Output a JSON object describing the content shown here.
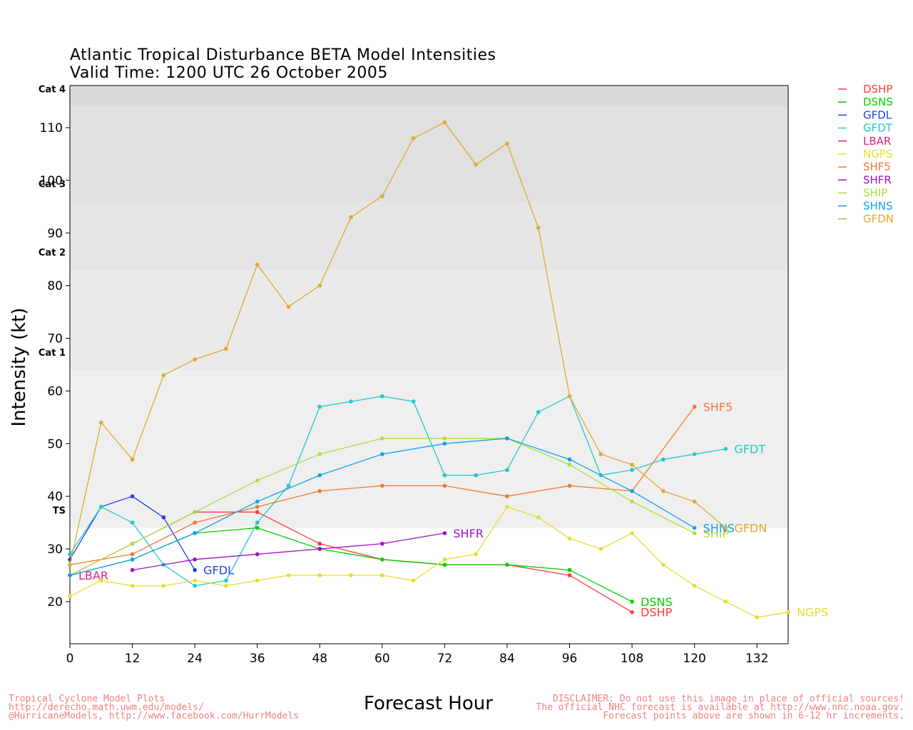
{
  "title": "Atlantic Tropical Disturbance BETA Model Intensities",
  "subtitle": "Valid Time: 1200 UTC 26 October 2005",
  "footer_left": [
    "Tropical Cyclone Model Plots",
    "http://derecho.math.uwm.edu/models/",
    "@HurricaneModels, http://www.facebook.com/HurrModels"
  ],
  "footer_right": [
    "DISCLAIMER: Do not use this image in place of official sources!",
    "The official NHC forecast is available at http://www.nhc.noaa.gov.",
    "Forecast points above are shown in 6-12 hr increments."
  ],
  "chart_data": {
    "type": "line",
    "title": "Atlantic Tropical Disturbance BETA Model Intensities",
    "subtitle": "Valid Time: 1200 UTC 26 October 2005",
    "xlabel": "Forecast Hour",
    "ylabel": "Intensity (kt)",
    "xlim": [
      0,
      138
    ],
    "ylim": [
      12,
      118
    ],
    "xticks": [
      0,
      12,
      24,
      36,
      48,
      60,
      72,
      84,
      96,
      108,
      120,
      132
    ],
    "yticks": [
      20,
      30,
      40,
      50,
      60,
      70,
      80,
      90,
      100,
      110
    ],
    "grid": false,
    "legend_position": "right",
    "intensity_bands": [
      {
        "label": "TS",
        "from": 34,
        "to": 64,
        "color": "#efefef"
      },
      {
        "label": "Cat 1",
        "from": 64,
        "to": 83,
        "color": "#eaeaea"
      },
      {
        "label": "Cat 2",
        "from": 83,
        "to": 96,
        "color": "#e5e5e5"
      },
      {
        "label": "Cat 3",
        "from": 96,
        "to": 114,
        "color": "#e0e0e0"
      },
      {
        "label": "Cat 4",
        "from": 114,
        "to": 118,
        "color": "#dadada"
      }
    ],
    "series": [
      {
        "name": "DSHP",
        "color": "#ff3b3b",
        "x": [
          0,
          12,
          24,
          36,
          48,
          60,
          72,
          84,
          96,
          108
        ],
        "y": [
          25,
          31,
          37,
          37,
          31,
          28,
          27,
          27,
          25,
          18
        ]
      },
      {
        "name": "DSNS",
        "color": "#00d000",
        "x": [
          0,
          12,
          24,
          36,
          48,
          60,
          72,
          84,
          96,
          108
        ],
        "y": [
          25,
          28,
          33,
          34,
          30,
          28,
          27,
          27,
          26,
          20
        ]
      },
      {
        "name": "GFDL",
        "color": "#2040e0",
        "x": [
          0,
          6,
          12,
          18,
          24
        ],
        "y": [
          28,
          38,
          40,
          36,
          26
        ]
      },
      {
        "name": "GFDT",
        "color": "#20c8c8",
        "x": [
          0,
          6,
          12,
          18,
          24,
          30,
          36,
          42,
          48,
          54,
          60,
          66,
          72,
          78,
          84,
          90,
          96,
          102,
          108,
          114,
          120,
          126
        ],
        "y": [
          29,
          38,
          35,
          27,
          23,
          24,
          35,
          42,
          57,
          58,
          59,
          58,
          44,
          44,
          45,
          56,
          59,
          44,
          45,
          47,
          48,
          49
        ]
      },
      {
        "name": "LBAR",
        "color": "#e0208a",
        "x": [
          0
        ],
        "y": [
          25
        ]
      },
      {
        "name": "NGPS",
        "color": "#e8dc30",
        "x": [
          0,
          6,
          12,
          18,
          24,
          30,
          36,
          42,
          48,
          54,
          60,
          66,
          72,
          78,
          84,
          90,
          96,
          102,
          108,
          114,
          120,
          126,
          132,
          138
        ],
        "y": [
          21,
          24,
          23,
          23,
          24,
          23,
          24,
          25,
          25,
          25,
          25,
          24,
          28,
          29,
          38,
          36,
          32,
          30,
          33,
          27,
          23,
          20,
          17,
          18
        ]
      },
      {
        "name": "SHF5",
        "color": "#f07830",
        "x": [
          0,
          12,
          24,
          36,
          48,
          60,
          72,
          84,
          96,
          108,
          120
        ],
        "y": [
          27,
          29,
          35,
          38,
          41,
          42,
          42,
          40,
          42,
          41,
          57
        ]
      },
      {
        "name": "SHFR",
        "color": "#a010c8",
        "x": [
          12,
          24,
          36,
          48,
          60,
          72
        ],
        "y": [
          26,
          28,
          29,
          30,
          31,
          33
        ]
      },
      {
        "name": "SHIP",
        "color": "#a8e040",
        "x": [
          0,
          12,
          24,
          36,
          48,
          60,
          72,
          84,
          96,
          108,
          120
        ],
        "y": [
          25,
          31,
          37,
          43,
          48,
          51,
          51,
          51,
          46,
          39,
          33
        ]
      },
      {
        "name": "SHNS",
        "color": "#10a0f0",
        "x": [
          0,
          12,
          24,
          36,
          48,
          60,
          72,
          84,
          96,
          108,
          120
        ],
        "y": [
          25,
          28,
          33,
          39,
          44,
          48,
          50,
          51,
          47,
          41,
          34
        ]
      },
      {
        "name": "GFDN",
        "color": "#e0a830",
        "x": [
          0,
          6,
          12,
          18,
          24,
          30,
          36,
          42,
          48,
          54,
          60,
          66,
          72,
          78,
          84,
          90,
          96,
          102,
          108,
          114,
          120,
          126
        ],
        "y": [
          27,
          54,
          47,
          63,
          66,
          68,
          84,
          76,
          80,
          93,
          97,
          108,
          111,
          103,
          107,
          91,
          59,
          48,
          46,
          41,
          39,
          34
        ]
      }
    ]
  }
}
